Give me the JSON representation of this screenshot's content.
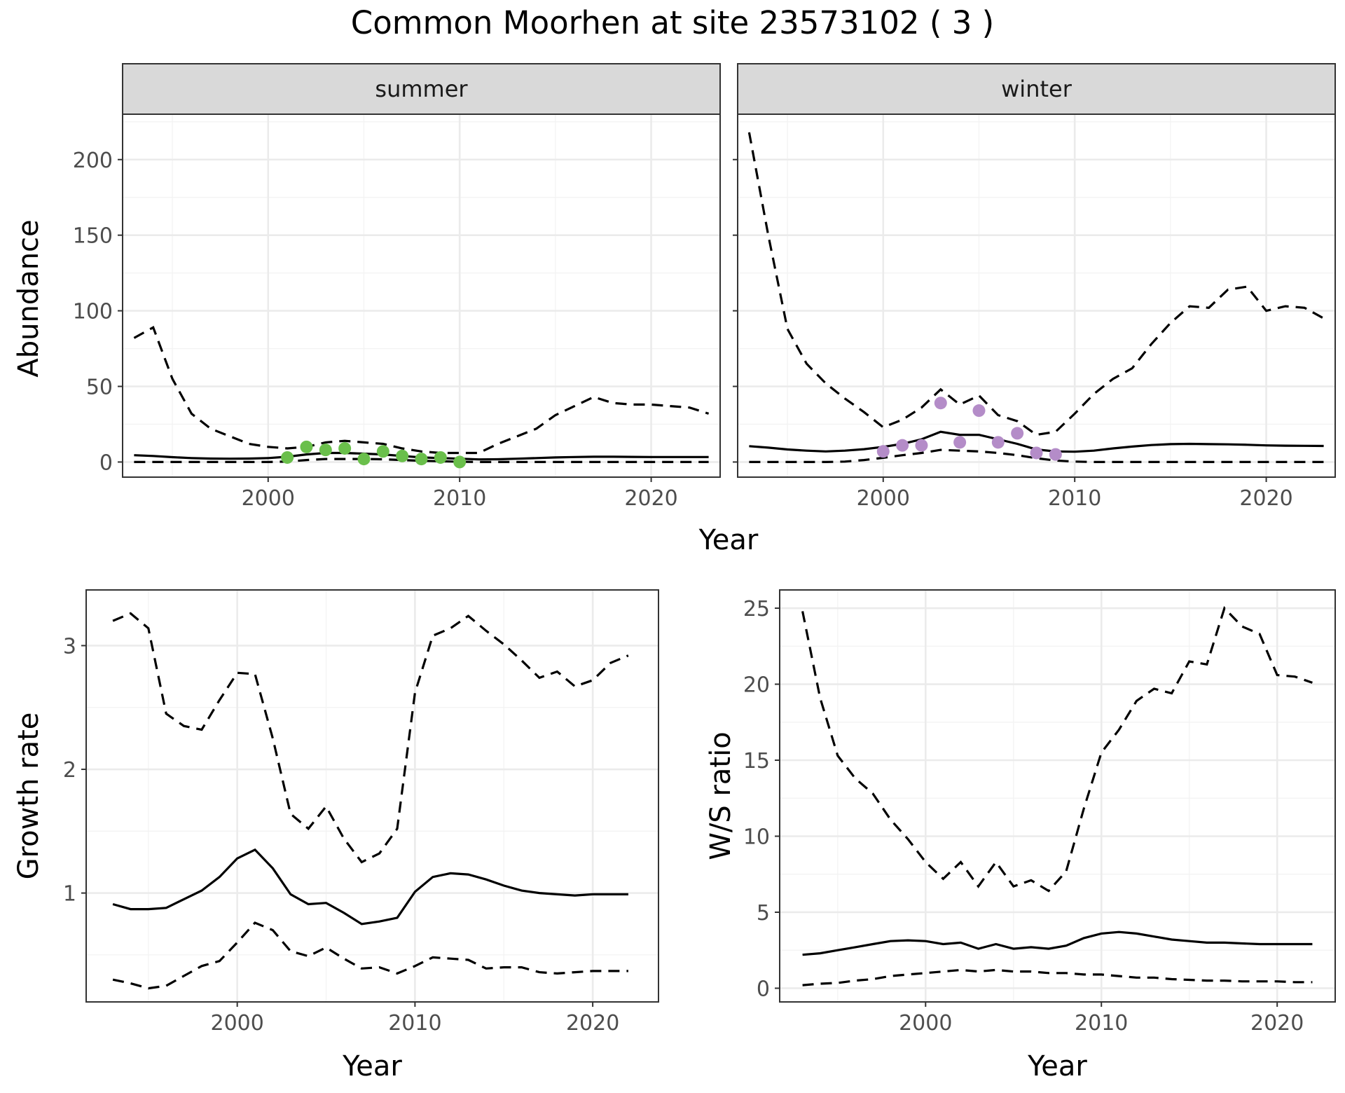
{
  "title": "Common Moorhen at site 23573102 ( 3 )",
  "colors": {
    "summer_points": "#6abf4b",
    "winter_points": "#b48cc8",
    "lines": "#000000"
  },
  "chart_data": [
    {
      "id": "abundance-summer",
      "type": "line",
      "strip": "summer",
      "xlabel": "Year",
      "ylabel": "Abundance",
      "xlim": [
        1992.4,
        2023.6
      ],
      "ylim": [
        -10,
        230
      ],
      "xticks": [
        2000,
        2010,
        2020
      ],
      "yticks": [
        0,
        50,
        100,
        150,
        200
      ],
      "x": [
        1993,
        1994,
        1995,
        1996,
        1997,
        1998,
        1999,
        2000,
        2001,
        2002,
        2003,
        2004,
        2005,
        2006,
        2007,
        2008,
        2009,
        2010,
        2011,
        2012,
        2013,
        2014,
        2015,
        2016,
        2017,
        2018,
        2019,
        2020,
        2021,
        2022,
        2023
      ],
      "series": [
        {
          "role": "upper",
          "style": "dashed",
          "values": [
            82,
            89,
            55,
            32,
            22,
            17,
            12,
            10,
            9,
            10,
            13,
            14,
            13,
            12,
            9,
            7,
            6,
            6,
            6,
            12,
            17,
            22,
            31,
            37,
            43,
            39,
            38,
            38,
            37,
            36,
            32
          ]
        },
        {
          "role": "mean",
          "style": "solid",
          "values": [
            4.5,
            4,
            3.2,
            2.6,
            2.3,
            2.2,
            2.3,
            2.6,
            3.5,
            5,
            6,
            6,
            5.5,
            5,
            4,
            3,
            2.6,
            2.2,
            1.7,
            1.8,
            2.2,
            2.6,
            3,
            3.3,
            3.5,
            3.5,
            3.4,
            3.3,
            3.3,
            3.3,
            3.3
          ]
        },
        {
          "role": "lower",
          "style": "dashed",
          "values": [
            0,
            0,
            0,
            0,
            0,
            0,
            0,
            0,
            0.3,
            1.3,
            2,
            2,
            2,
            1.8,
            1.3,
            0.8,
            0.5,
            0.2,
            0,
            0,
            0,
            0,
            0,
            0,
            0,
            0,
            0,
            0,
            0,
            0,
            0
          ]
        }
      ],
      "points": {
        "x": [
          2001,
          2002,
          2003,
          2004,
          2005,
          2006,
          2007,
          2008,
          2009,
          2010
        ],
        "y": [
          3,
          10,
          8,
          9,
          2,
          7,
          4,
          2,
          3,
          0
        ]
      }
    },
    {
      "id": "abundance-winter",
      "type": "line",
      "strip": "winter",
      "xlabel": "Year",
      "ylabel": "",
      "xlim": [
        1992.4,
        2023.6
      ],
      "ylim": [
        -10,
        230
      ],
      "xticks": [
        2000,
        2010,
        2020
      ],
      "yticks": [],
      "x": [
        1993,
        1994,
        1995,
        1996,
        1997,
        1998,
        1999,
        2000,
        2001,
        2002,
        2003,
        2004,
        2005,
        2006,
        2007,
        2008,
        2009,
        2010,
        2011,
        2012,
        2013,
        2014,
        2015,
        2016,
        2017,
        2018,
        2019,
        2020,
        2021,
        2022,
        2023
      ],
      "series": [
        {
          "role": "upper",
          "style": "dashed",
          "values": [
            218,
            150,
            88,
            65,
            52,
            42,
            33,
            23,
            28,
            36,
            48,
            38,
            44,
            31,
            27,
            18,
            20,
            32,
            45,
            55,
            62,
            78,
            92,
            103,
            102,
            114,
            116,
            100,
            103,
            102,
            95
          ]
        },
        {
          "role": "mean",
          "style": "solid",
          "values": [
            10.5,
            9.5,
            8.3,
            7.5,
            7,
            7.5,
            8.5,
            10,
            12,
            15,
            20,
            18,
            18,
            15,
            12,
            8.3,
            7,
            6.8,
            7.5,
            9,
            10.2,
            11.2,
            11.8,
            12,
            11.8,
            11.7,
            11.4,
            11,
            10.8,
            10.7,
            10.6
          ]
        },
        {
          "role": "lower",
          "style": "dashed",
          "values": [
            0,
            0,
            0,
            0,
            0,
            0.3,
            1.3,
            2.8,
            4.5,
            6,
            8,
            7.5,
            7,
            6,
            4.5,
            2.5,
            1,
            0.3,
            0,
            0,
            0,
            0,
            0,
            0,
            0,
            0,
            0,
            0,
            0,
            0,
            0
          ]
        }
      ],
      "points": {
        "x": [
          2000,
          2001,
          2002,
          2003,
          2004,
          2005,
          2006,
          2007,
          2008,
          2009
        ],
        "y": [
          7,
          11,
          11,
          39,
          13,
          34,
          13,
          19,
          6,
          5
        ]
      }
    },
    {
      "id": "growth-rate",
      "type": "line",
      "xlabel": "Year",
      "ylabel": "Growth rate",
      "xlim": [
        1991.5,
        2023.7
      ],
      "ylim": [
        0.12,
        3.45
      ],
      "xticks": [
        2000,
        2010,
        2020
      ],
      "yticks": [
        1,
        2,
        3
      ],
      "x": [
        1993,
        1994,
        1995,
        1996,
        1997,
        1998,
        1999,
        2000,
        2001,
        2002,
        2003,
        2004,
        2005,
        2006,
        2007,
        2008,
        2009,
        2010,
        2011,
        2012,
        2013,
        2014,
        2015,
        2016,
        2017,
        2018,
        2019,
        2020,
        2021,
        2022
      ],
      "series": [
        {
          "role": "upper",
          "style": "dashed",
          "values": [
            3.2,
            3.26,
            3.14,
            2.45,
            2.35,
            2.32,
            2.56,
            2.78,
            2.77,
            2.25,
            1.64,
            1.52,
            1.7,
            1.44,
            1.25,
            1.32,
            1.52,
            2.62,
            3.08,
            3.14,
            3.24,
            3.12,
            3.01,
            2.88,
            2.74,
            2.79,
            2.67,
            2.72,
            2.86,
            2.92
          ]
        },
        {
          "role": "mean",
          "style": "solid",
          "values": [
            0.91,
            0.87,
            0.87,
            0.88,
            0.95,
            1.02,
            1.13,
            1.28,
            1.35,
            1.2,
            0.99,
            0.91,
            0.92,
            0.84,
            0.75,
            0.77,
            0.8,
            1.01,
            1.13,
            1.16,
            1.15,
            1.11,
            1.06,
            1.02,
            1,
            0.99,
            0.98,
            0.99,
            0.99,
            0.99
          ]
        },
        {
          "role": "lower",
          "style": "dashed",
          "values": [
            0.3,
            0.27,
            0.23,
            0.25,
            0.33,
            0.41,
            0.45,
            0.6,
            0.76,
            0.7,
            0.53,
            0.49,
            0.56,
            0.47,
            0.39,
            0.4,
            0.35,
            0.41,
            0.48,
            0.47,
            0.46,
            0.39,
            0.4,
            0.4,
            0.36,
            0.35,
            0.36,
            0.37,
            0.37,
            0.37
          ]
        }
      ]
    },
    {
      "id": "ws-ratio",
      "type": "line",
      "xlabel": "Year",
      "ylabel": "W/S ratio",
      "xlim": [
        1991.7,
        2023.3
      ],
      "ylim": [
        -0.9,
        26.2
      ],
      "xticks": [
        2000,
        2010,
        2020
      ],
      "yticks": [
        0,
        5,
        10,
        15,
        20,
        25
      ],
      "x": [
        1993,
        1994,
        1995,
        1996,
        1997,
        1998,
        1999,
        2000,
        2001,
        2002,
        2003,
        2004,
        2005,
        2006,
        2007,
        2008,
        2009,
        2010,
        2011,
        2012,
        2013,
        2014,
        2015,
        2016,
        2017,
        2018,
        2019,
        2020,
        2021,
        2022
      ],
      "series": [
        {
          "role": "upper",
          "style": "dashed",
          "values": [
            24.8,
            19.1,
            15.3,
            13.8,
            12.8,
            11.1,
            9.8,
            8.3,
            7.2,
            8.3,
            6.7,
            8.3,
            6.7,
            7.1,
            6.4,
            7.7,
            11.8,
            15.5,
            17.0,
            18.9,
            19.7,
            19.4,
            21.5,
            21.3,
            25.0,
            23.8,
            23.3,
            20.6,
            20.5,
            20.1
          ]
        },
        {
          "role": "mean",
          "style": "solid",
          "values": [
            2.2,
            2.3,
            2.5,
            2.7,
            2.9,
            3.1,
            3.15,
            3.1,
            2.9,
            3.0,
            2.6,
            2.9,
            2.6,
            2.7,
            2.6,
            2.8,
            3.3,
            3.6,
            3.7,
            3.6,
            3.4,
            3.2,
            3.1,
            3.0,
            3.0,
            2.95,
            2.9,
            2.9,
            2.9,
            2.9
          ]
        },
        {
          "role": "lower",
          "style": "dashed",
          "values": [
            0.2,
            0.3,
            0.35,
            0.5,
            0.6,
            0.8,
            0.9,
            1.0,
            1.1,
            1.2,
            1.1,
            1.2,
            1.1,
            1.1,
            1.0,
            1.0,
            0.9,
            0.9,
            0.8,
            0.7,
            0.7,
            0.6,
            0.55,
            0.5,
            0.5,
            0.45,
            0.45,
            0.45,
            0.4,
            0.4
          ]
        }
      ]
    }
  ]
}
